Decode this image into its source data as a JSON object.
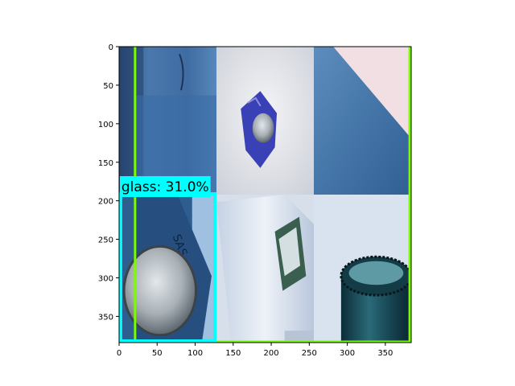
{
  "chart_data": {
    "type": "image",
    "title": "",
    "xlabel": "",
    "ylabel": "",
    "xlim": [
      0,
      384
    ],
    "ylim": [
      0,
      384
    ],
    "y_axis_inverted": true,
    "x_ticks": [
      0,
      50,
      100,
      150,
      200,
      250,
      300,
      350
    ],
    "y_ticks": [
      0,
      50,
      100,
      150,
      200,
      250,
      300,
      350
    ],
    "image_grid": {
      "rows": 2,
      "cols": 3,
      "tile_width": 128,
      "tile_height": 192
    },
    "tiles": [
      {
        "col": 0,
        "row": 0,
        "content": "blue cardboard close-up"
      },
      {
        "col": 1,
        "row": 0,
        "content": "crushed blue metal can"
      },
      {
        "col": 2,
        "row": 0,
        "content": "blue and pink paper"
      },
      {
        "col": 0,
        "row": 1,
        "content": "blue can bottom"
      },
      {
        "col": 1,
        "row": 1,
        "content": "white plastic bottle"
      },
      {
        "col": 2,
        "row": 1,
        "content": "green glass bottle neck"
      }
    ],
    "detections": [
      {
        "label": "glass: 31.0%",
        "class": "glass",
        "score": 31.0,
        "x_min": 2,
        "y_min": 191,
        "x_max": 126,
        "y_max": 382,
        "color": "#00ffff"
      }
    ],
    "guide_lines": [
      {
        "type": "vertical",
        "x": 21,
        "color": "#7cfc00"
      },
      {
        "type": "vertical",
        "x": 382,
        "color": "#7cfc00"
      },
      {
        "type": "horizontal",
        "y": 383,
        "color": "#7cfc00"
      }
    ]
  }
}
